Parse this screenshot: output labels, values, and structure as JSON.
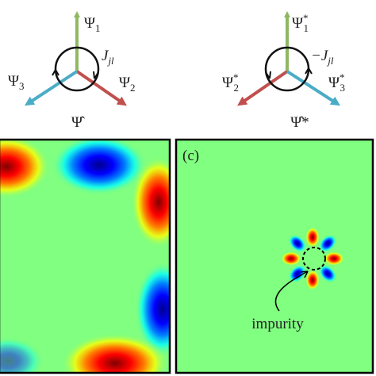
{
  "diagram_left": {
    "up": {
      "symbol": "Ψ",
      "sub": "1"
    },
    "left": {
      "symbol": "Ψ",
      "sub": "3"
    },
    "right": {
      "symbol": "Ψ",
      "sub": "2"
    },
    "coupling": {
      "symbol": "J",
      "sub": "jl"
    },
    "caption": "Ψ̂"
  },
  "diagram_right": {
    "up": {
      "symbol": "Ψ",
      "sup": "*",
      "sub": "1"
    },
    "left": {
      "symbol": "Ψ",
      "sup": "*",
      "sub": "2"
    },
    "right": {
      "symbol": "Ψ",
      "sup": "*",
      "sub": "3"
    },
    "coupling": {
      "symbol": "−J",
      "sub": "jl"
    },
    "caption": "Ψ̂*"
  },
  "panel_c": {
    "label": "(c)",
    "annotation": "impurity"
  }
}
